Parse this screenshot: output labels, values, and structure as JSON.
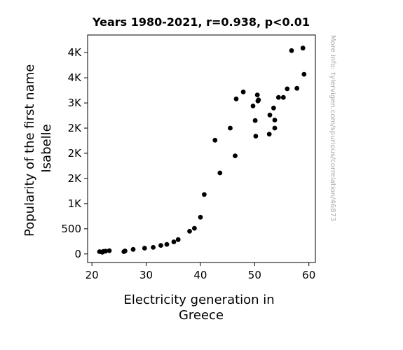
{
  "chart_data": {
    "type": "scatter",
    "title": "Years 1980-2021, r=0.938, p<0.01",
    "xlabel": [
      "Electricity generation in",
      "Greece"
    ],
    "ylabel": [
      "Popularity of the first name",
      "Isabelle"
    ],
    "watermark": "More info: tylervigen.com/spurious/correlation/46873",
    "xlim": [
      19.2,
      61.2
    ],
    "ylim": [
      -170,
      4350
    ],
    "x_ticks": [
      {
        "value": 20,
        "label": "20"
      },
      {
        "value": 30,
        "label": "30"
      },
      {
        "value": 40,
        "label": "40"
      },
      {
        "value": 50,
        "label": "50"
      },
      {
        "value": 60,
        "label": "60"
      }
    ],
    "y_ticks": [
      {
        "value": 0,
        "label": "0"
      },
      {
        "value": 500,
        "label": "500"
      },
      {
        "value": 1000,
        "label": "1K"
      },
      {
        "value": 1500,
        "label": "2K"
      },
      {
        "value": 2000,
        "label": "2K"
      },
      {
        "value": 2500,
        "label": "2K"
      },
      {
        "value": 3000,
        "label": "3K"
      },
      {
        "value": 3500,
        "label": "4K"
      },
      {
        "value": 4000,
        "label": "4K"
      }
    ],
    "marker_color": "#000000",
    "grid": false,
    "points": [
      {
        "x": 21.4,
        "y": 45
      },
      {
        "x": 21.9,
        "y": 35
      },
      {
        "x": 22.1,
        "y": 50
      },
      {
        "x": 22.5,
        "y": 55
      },
      {
        "x": 23.2,
        "y": 65
      },
      {
        "x": 25.9,
        "y": 45
      },
      {
        "x": 26.1,
        "y": 60
      },
      {
        "x": 27.6,
        "y": 90
      },
      {
        "x": 29.7,
        "y": 115
      },
      {
        "x": 31.3,
        "y": 130
      },
      {
        "x": 32.7,
        "y": 170
      },
      {
        "x": 33.8,
        "y": 190
      },
      {
        "x": 35.1,
        "y": 240
      },
      {
        "x": 35.9,
        "y": 285
      },
      {
        "x": 38.0,
        "y": 450
      },
      {
        "x": 38.9,
        "y": 510
      },
      {
        "x": 40.0,
        "y": 730
      },
      {
        "x": 40.7,
        "y": 1180
      },
      {
        "x": 42.7,
        "y": 2260
      },
      {
        "x": 43.6,
        "y": 1610
      },
      {
        "x": 45.5,
        "y": 2500
      },
      {
        "x": 46.4,
        "y": 1950
      },
      {
        "x": 46.6,
        "y": 3080
      },
      {
        "x": 47.9,
        "y": 3220
      },
      {
        "x": 49.7,
        "y": 2940
      },
      {
        "x": 50.1,
        "y": 2650
      },
      {
        "x": 50.2,
        "y": 2340
      },
      {
        "x": 50.5,
        "y": 3160
      },
      {
        "x": 50.6,
        "y": 3040
      },
      {
        "x": 50.7,
        "y": 3060
      },
      {
        "x": 52.7,
        "y": 2380
      },
      {
        "x": 52.8,
        "y": 2760
      },
      {
        "x": 53.5,
        "y": 2900
      },
      {
        "x": 53.7,
        "y": 2500
      },
      {
        "x": 53.7,
        "y": 2660
      },
      {
        "x": 54.4,
        "y": 3110
      },
      {
        "x": 55.3,
        "y": 3110
      },
      {
        "x": 56.0,
        "y": 3280
      },
      {
        "x": 56.8,
        "y": 4040
      },
      {
        "x": 57.8,
        "y": 3290
      },
      {
        "x": 58.9,
        "y": 4090
      },
      {
        "x": 59.1,
        "y": 3570
      }
    ]
  }
}
